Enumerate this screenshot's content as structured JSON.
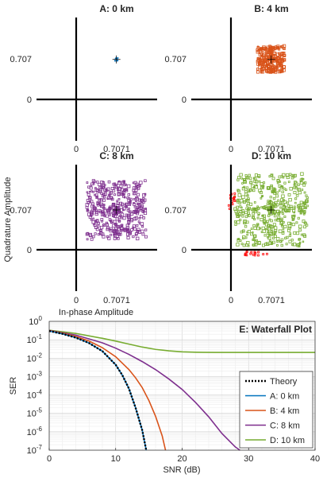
{
  "chart_data": [
    {
      "panel": "A",
      "type": "scatter",
      "title": "A: 0 km",
      "x_ticks": [
        "0",
        "0.7071"
      ],
      "y_ticks": [
        "0",
        "0.707"
      ],
      "xlim": [
        -0.5,
        1.5
      ],
      "ylim": [
        -0.5,
        1.5
      ],
      "cluster": {
        "center": [
          0.7071,
          0.7071
        ],
        "spread": 0.02,
        "color": "#0072BD"
      }
    },
    {
      "panel": "B",
      "type": "scatter",
      "title": "B: 4 km",
      "x_ticks": [
        "0",
        "0.7071"
      ],
      "y_ticks": [
        "0",
        "0.707"
      ],
      "xlim": [
        -0.5,
        1.5
      ],
      "ylim": [
        -0.5,
        1.5
      ],
      "cluster": {
        "center": [
          0.7071,
          0.7071
        ],
        "spread": 0.24,
        "color": "#D95319"
      }
    },
    {
      "panel": "C",
      "type": "scatter",
      "title": "C: 8 km",
      "x_ticks": [
        "0",
        "0.7071"
      ],
      "y_ticks": [
        "0",
        "0.707"
      ],
      "xlim": [
        -0.5,
        1.5
      ],
      "ylim": [
        -0.5,
        1.5
      ],
      "xlabel": "In-phase Amplitude",
      "ylabel": "Quadrature Amplitude",
      "cluster": {
        "center": [
          0.7071,
          0.7071
        ],
        "spread": 0.52,
        "color": "#7E2F8E"
      }
    },
    {
      "panel": "D",
      "type": "scatter",
      "title": "D: 10 km",
      "x_ticks": [
        "0",
        "0.7071"
      ],
      "y_ticks": [
        "0",
        "0.707"
      ],
      "xlim": [
        -0.5,
        1.5
      ],
      "ylim": [
        -0.5,
        1.5
      ],
      "cluster": {
        "center": [
          0.7071,
          0.7071
        ],
        "spread": 0.64,
        "color": "#77AC30"
      },
      "error_color": "#FF0000"
    },
    {
      "panel": "E",
      "type": "line",
      "title": "E: Waterfall Plot",
      "xlabel": "SNR (dB)",
      "ylabel": "SER",
      "xlim": [
        0,
        40
      ],
      "ylim_log10": [
        -7,
        0
      ],
      "y_scale": "log",
      "grid": true,
      "legend_position": "bottom-right",
      "x_ticks": [
        "0",
        "10",
        "20",
        "30",
        "40"
      ],
      "y_tick_mantissa": "10",
      "y_tick_exponents": [
        "0",
        "-1",
        "-2",
        "-3",
        "-4",
        "-5",
        "-6",
        "-7"
      ],
      "series": [
        {
          "name": "Theory",
          "color": "#000000",
          "dashed": true,
          "x": [
            0,
            2,
            4,
            6,
            8,
            10,
            11,
            12,
            13,
            14,
            14.6
          ],
          "y": [
            0.3,
            0.21,
            0.13,
            0.066,
            0.024,
            0.0044,
            0.0012,
            0.00022,
            2e-05,
            1.2e-06,
            1e-07
          ]
        },
        {
          "name": "A: 0 km",
          "color": "#0072BD",
          "dashed": false,
          "x": [
            0,
            2,
            4,
            6,
            8,
            10,
            11,
            12,
            13,
            14,
            14.6
          ],
          "y": [
            0.3,
            0.21,
            0.13,
            0.066,
            0.024,
            0.0044,
            0.0012,
            0.00022,
            2e-05,
            1.2e-06,
            1e-07
          ]
        },
        {
          "name": "B: 4 km",
          "color": "#D95319",
          "dashed": false,
          "x": [
            0,
            2,
            4,
            6,
            8,
            10,
            12,
            13,
            14,
            15,
            16,
            17,
            17.5
          ],
          "y": [
            0.31,
            0.23,
            0.15,
            0.085,
            0.037,
            0.012,
            0.0024,
            0.00085,
            0.00025,
            5e-05,
            7e-06,
            6e-07,
            1e-07
          ]
        },
        {
          "name": "C: 8 km",
          "color": "#7E2F8E",
          "dashed": false,
          "x": [
            0,
            4,
            8,
            10,
            12,
            14,
            16,
            18,
            20,
            22,
            24,
            26,
            28,
            28.7
          ],
          "y": [
            0.32,
            0.18,
            0.068,
            0.035,
            0.016,
            0.0065,
            0.0024,
            0.00074,
            0.0002,
            4e-05,
            6.5e-06,
            8e-07,
            1.5e-07,
            1e-07
          ]
        },
        {
          "name": "D: 10 km",
          "color": "#77AC30",
          "dashed": false,
          "x": [
            0,
            4,
            8,
            10,
            12,
            14,
            16,
            18,
            20,
            22,
            25,
            30,
            35,
            40
          ],
          "y": [
            0.33,
            0.22,
            0.12,
            0.085,
            0.058,
            0.04,
            0.03,
            0.025,
            0.022,
            0.021,
            0.0205,
            0.0205,
            0.0205,
            0.0205
          ]
        }
      ]
    }
  ]
}
